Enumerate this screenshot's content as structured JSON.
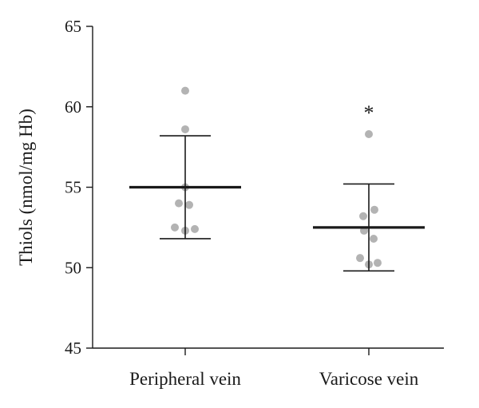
{
  "chart_data": {
    "type": "scatter",
    "ylabel": "Thiols (nmol/mg Hb)",
    "ylim": [
      45,
      65
    ],
    "yticks": [
      45,
      50,
      55,
      60,
      65
    ],
    "categories": [
      "Peripheral vein",
      "Varicose vein"
    ],
    "groups": [
      {
        "category": "Peripheral vein",
        "mean": 55.0,
        "error_low": 51.8,
        "error_high": 58.2,
        "points": [
          61.0,
          58.6,
          55.0,
          54.0,
          53.9,
          52.5,
          52.3,
          52.4
        ],
        "annotation": ""
      },
      {
        "category": "Varicose vein",
        "mean": 52.5,
        "error_low": 49.8,
        "error_high": 55.2,
        "points": [
          58.3,
          53.6,
          53.2,
          52.3,
          51.8,
          50.6,
          50.3,
          50.2
        ],
        "annotation": "*"
      }
    ],
    "colors": {
      "points": "#b3b3b3",
      "mean_line": "#1a1a1a",
      "error_bar": "#1a1a1a",
      "axis": "#1a1a1a"
    }
  }
}
